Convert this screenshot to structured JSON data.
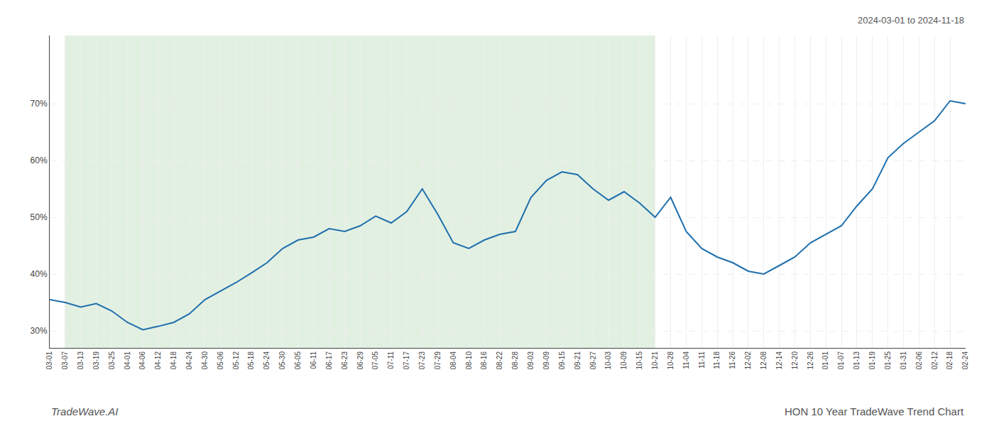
{
  "chart_data": {
    "type": "line",
    "annotations": [
      "2024-03-01 to 2024-11-18",
      "TradeWave.AI",
      "HON 10 Year TradeWave Trend Chart"
    ],
    "categories": [
      "03-01",
      "03-07",
      "03-13",
      "03-19",
      "03-25",
      "04-01",
      "04-06",
      "04-12",
      "04-18",
      "04-24",
      "04-30",
      "05-06",
      "05-12",
      "05-18",
      "05-24",
      "05-30",
      "06-05",
      "06-11",
      "06-17",
      "06-23",
      "06-29",
      "07-05",
      "07-11",
      "07-17",
      "07-23",
      "07-29",
      "08-04",
      "08-10",
      "08-16",
      "08-22",
      "08-28",
      "09-03",
      "09-09",
      "09-15",
      "09-21",
      "09-27",
      "10-03",
      "10-09",
      "10-15",
      "10-21",
      "10-28",
      "11-04",
      "11-11",
      "11-18",
      "11-26",
      "12-02",
      "12-08",
      "12-14",
      "12-20",
      "12-26",
      "01-01",
      "01-07",
      "01-13",
      "01-19",
      "01-25",
      "01-31",
      "02-06",
      "02-12",
      "02-18",
      "02-24"
    ],
    "values": [
      35.5,
      35.0,
      34.2,
      34.8,
      33.5,
      31.5,
      30.2,
      30.8,
      31.5,
      33.0,
      35.5,
      37.0,
      38.5,
      40.2,
      42.0,
      44.5,
      46.0,
      46.5,
      48.0,
      47.5,
      48.5,
      50.2,
      49.0,
      51.0,
      55.0,
      50.5,
      45.5,
      44.5,
      46.0,
      47.0,
      47.5,
      53.5,
      56.5,
      58.0,
      57.5,
      55.0,
      53.0,
      54.5,
      52.5,
      50.0,
      53.5,
      47.5,
      44.5,
      43.0,
      42.0,
      40.5,
      40.0,
      41.5,
      43.0,
      45.5,
      47.0,
      48.5,
      52.0,
      55.0,
      60.5,
      63.0,
      65.0,
      67.0,
      70.5,
      70.0
    ],
    "color": "#1f6fad",
    "shaded_region": {
      "start": "03-07",
      "end": "10-21",
      "color": "#d6ead6"
    },
    "ylim": [
      27,
      82
    ],
    "yticks": [
      {
        "value": 30,
        "label": "30%"
      },
      {
        "value": 40,
        "label": "40%"
      },
      {
        "value": 50,
        "label": "50%"
      },
      {
        "value": 60,
        "label": "60%"
      },
      {
        "value": 70,
        "label": "70%"
      }
    ],
    "grid": true
  }
}
